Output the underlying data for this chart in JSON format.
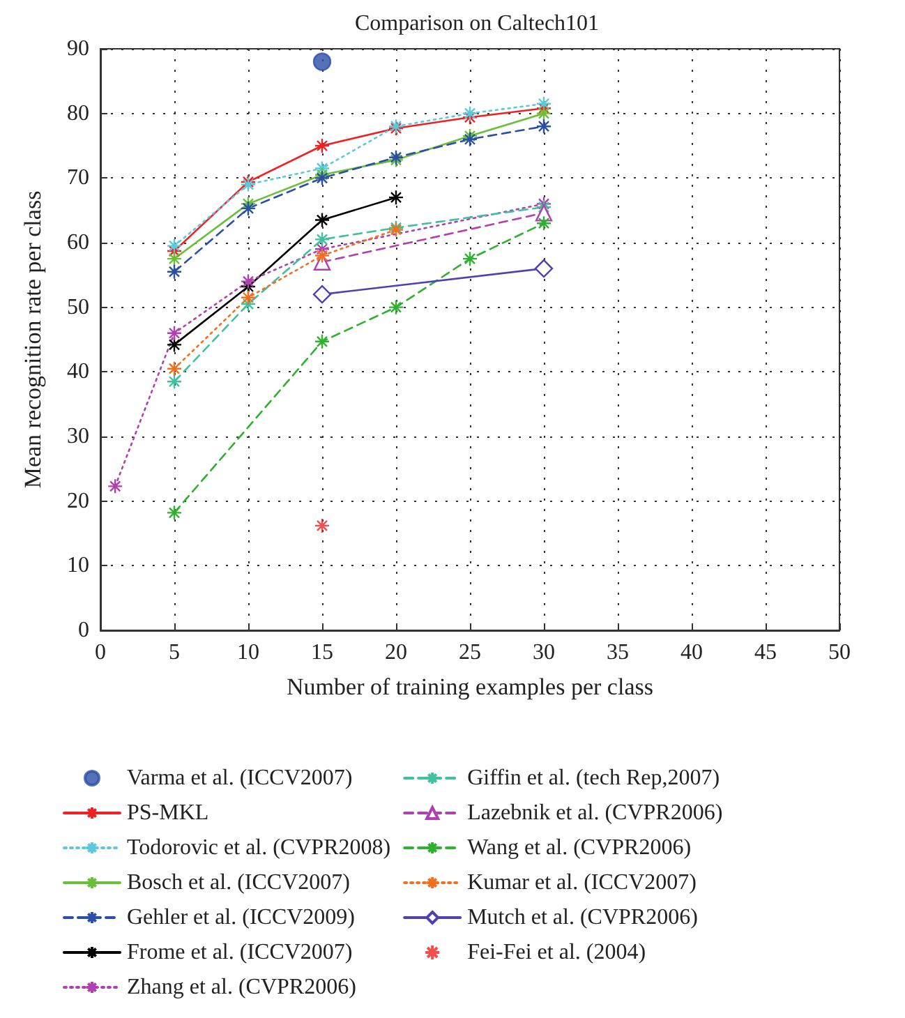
{
  "chart_data": {
    "type": "line",
    "title": "Comparison on Caltech101",
    "xlabel": "Number of training examples per class",
    "ylabel": "Mean recognition rate per class",
    "xlim": [
      0,
      50
    ],
    "xticks": [
      0,
      5,
      10,
      15,
      20,
      25,
      30,
      35,
      40,
      45,
      50
    ],
    "ylim": [
      0,
      90
    ],
    "yticks": [
      0,
      10,
      20,
      30,
      40,
      50,
      60,
      70,
      80,
      90
    ],
    "grid": true,
    "legend": "bottom",
    "series": [
      {
        "name": "Varma et al. (ICCV2007)",
        "type": "scatter",
        "color": "#2b4ea6",
        "marker": "circle",
        "x": [
          15
        ],
        "values": [
          88
        ]
      },
      {
        "name": "PS-MKL",
        "color": "#f02020",
        "marker": "cross",
        "line_style": "solid",
        "x": [
          5,
          10,
          15,
          20,
          25,
          30
        ],
        "values": [
          58.7,
          69.4,
          75,
          77.7,
          79.4,
          80.8
        ]
      },
      {
        "name": "Todorovic et al. (CVPR2008)",
        "color": "#5bc8dc",
        "marker": "cross",
        "line_style": "dotted",
        "x": [
          5,
          10,
          15,
          20,
          25,
          30
        ],
        "values": [
          59.5,
          69,
          71.5,
          78,
          80,
          81.5
        ]
      },
      {
        "name": "Bosch et al. (ICCV2007)",
        "color": "#6abf3a",
        "marker": "cross",
        "line_style": "solid",
        "x": [
          5,
          10,
          15,
          20,
          25,
          30
        ],
        "values": [
          57.5,
          66,
          70.5,
          72.8,
          76.5,
          80
        ]
      },
      {
        "name": "Gehler et al. (ICCV2009)",
        "color": "#2b4ea6",
        "marker": "cross",
        "line_style": "dashed",
        "x": [
          5,
          10,
          15,
          20,
          25,
          30
        ],
        "values": [
          55.5,
          65.3,
          70,
          73.2,
          76,
          78
        ]
      },
      {
        "name": "Frome et al. (ICCV2007)",
        "color": "#000000",
        "marker": "cross",
        "line_style": "solid",
        "x": [
          5,
          10,
          15,
          20
        ],
        "values": [
          44.2,
          53.2,
          63.5,
          67
        ]
      },
      {
        "name": "Zhang et al. (CVPR2006)",
        "color": "#b040b0",
        "marker": "cross",
        "line_style": "dotted",
        "x": [
          1,
          5,
          10,
          15,
          30
        ],
        "values": [
          22.3,
          46,
          54,
          59,
          66
        ]
      },
      {
        "name": "Giffin et al. (tech Rep,2007)",
        "color": "#40c0a0",
        "marker": "cross",
        "line_style": "dashed",
        "x": [
          5,
          10,
          15,
          20,
          30
        ],
        "values": [
          38.5,
          50.5,
          60.5,
          62.3,
          65.5
        ]
      },
      {
        "name": "Lazebnik et al. (CVPR2006)",
        "color": "#b040b0",
        "marker": "triangle",
        "line_style": "dashed",
        "x": [
          15,
          30
        ],
        "values": [
          57,
          64.6
        ]
      },
      {
        "name": "Wang et al. (CVPR2006)",
        "color": "#30b030",
        "marker": "cross",
        "line_style": "dashed",
        "x": [
          5,
          15,
          20,
          25,
          30
        ],
        "values": [
          18.2,
          44.7,
          50,
          57.5,
          63
        ]
      },
      {
        "name": "Kumar et al. (ICCV2007)",
        "color": "#f07020",
        "marker": "cross",
        "line_style": "dotted",
        "x": [
          5,
          10,
          15,
          20
        ],
        "values": [
          40.5,
          51.5,
          58,
          62
        ]
      },
      {
        "name": "Mutch et al. (CVPR2006)",
        "color": "#5040b0",
        "marker": "diamond",
        "line_style": "solid",
        "x": [
          15,
          30
        ],
        "values": [
          52,
          56
        ]
      },
      {
        "name": "Fei-Fei et al. (2004)",
        "type": "scatter",
        "color": "#f02020",
        "marker": "cross",
        "x": [
          15
        ],
        "values": [
          16.2
        ]
      }
    ]
  }
}
